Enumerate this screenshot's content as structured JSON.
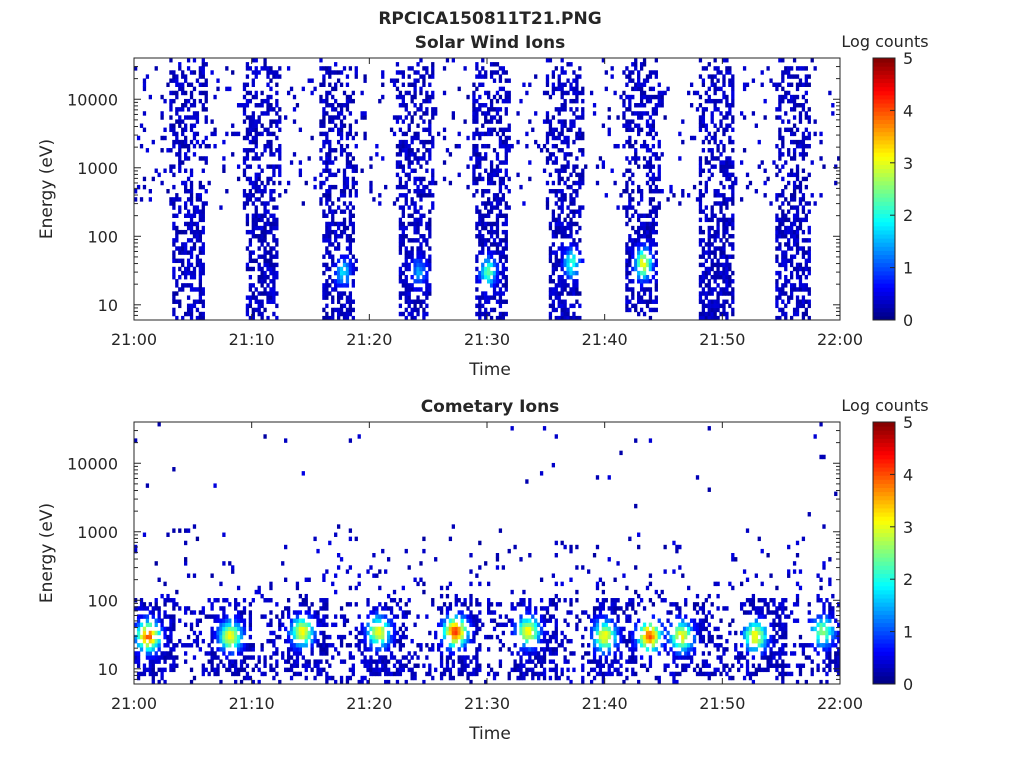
{
  "figure": {
    "title": "RPCICA150811T21.PNG"
  },
  "chart_data": [
    {
      "type": "heatmap",
      "title": "Solar Wind Ions",
      "xlabel": "Time",
      "ylabel": "Energy (eV)",
      "x_ticks": [
        "21:00",
        "21:10",
        "21:20",
        "21:30",
        "21:40",
        "21:50",
        "22:00"
      ],
      "x_range": [
        "21:00",
        "22:00"
      ],
      "y_scale": "log",
      "y_ticks": [
        "10",
        "100",
        "1000",
        "10000"
      ],
      "y_range": [
        6,
        40000
      ],
      "colorbar": {
        "label": "Log counts",
        "ticks": [
          "0",
          "1",
          "2",
          "3",
          "4",
          "5"
        ],
        "range": [
          0,
          5
        ],
        "colormap": "jet"
      },
      "scan_centers_min": [
        4.7,
        10.9,
        17.4,
        23.8,
        30.3,
        36.7,
        43.1,
        49.5,
        56.0
      ],
      "hotspots": [
        {
          "t_min": 17.8,
          "energy_ev": 30,
          "log_counts": 1.6
        },
        {
          "t_min": 24.2,
          "energy_ev": 30,
          "log_counts": 1.3
        },
        {
          "t_min": 30.1,
          "energy_ev": 30,
          "log_counts": 2.2
        },
        {
          "t_min": 37.2,
          "energy_ev": 40,
          "log_counts": 2.0
        },
        {
          "t_min": 43.3,
          "energy_ev": 40,
          "log_counts": 3.0
        }
      ]
    },
    {
      "type": "heatmap",
      "title": "Cometary Ions",
      "xlabel": "Time",
      "ylabel": "Energy (eV)",
      "x_ticks": [
        "21:00",
        "21:10",
        "21:20",
        "21:30",
        "21:40",
        "21:50",
        "22:00"
      ],
      "x_range": [
        "21:00",
        "22:00"
      ],
      "y_scale": "log",
      "y_ticks": [
        "10",
        "100",
        "1000",
        "10000"
      ],
      "y_range": [
        6,
        40000
      ],
      "colorbar": {
        "label": "Log counts",
        "ticks": [
          "0",
          "1",
          "2",
          "3",
          "4",
          "5"
        ],
        "range": [
          0,
          5
        ],
        "colormap": "jet"
      },
      "hotspots": [
        {
          "t_min": 1.2,
          "energy_ev": 30,
          "log_counts": 3.8
        },
        {
          "t_min": 8.2,
          "energy_ev": 30,
          "log_counts": 3.0
        },
        {
          "t_min": 14.3,
          "energy_ev": 35,
          "log_counts": 3.0
        },
        {
          "t_min": 20.8,
          "energy_ev": 35,
          "log_counts": 3.0
        },
        {
          "t_min": 27.3,
          "energy_ev": 35,
          "log_counts": 4.0
        },
        {
          "t_min": 33.5,
          "energy_ev": 35,
          "log_counts": 3.0
        },
        {
          "t_min": 40.0,
          "energy_ev": 30,
          "log_counts": 3.0
        },
        {
          "t_min": 43.8,
          "energy_ev": 30,
          "log_counts": 3.8
        },
        {
          "t_min": 46.5,
          "energy_ev": 30,
          "log_counts": 3.0
        },
        {
          "t_min": 52.8,
          "energy_ev": 30,
          "log_counts": 3.0
        },
        {
          "t_min": 58.5,
          "energy_ev": 35,
          "log_counts": 2.5
        }
      ]
    }
  ]
}
